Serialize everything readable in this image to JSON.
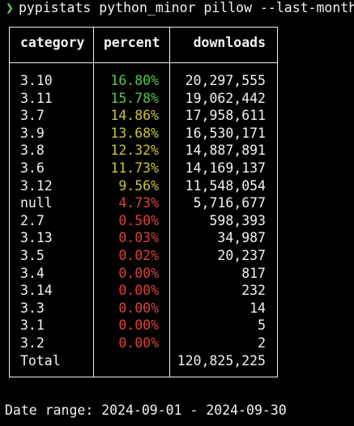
{
  "terminal": {
    "prompt_symbol": "❯",
    "command": "pypistats python_minor pillow --last-month"
  },
  "table": {
    "headers": {
      "category": "category",
      "percent": "percent",
      "downloads": "downloads"
    },
    "rows": [
      {
        "category": "3.10",
        "percent": "16.80%",
        "downloads": "20,297,555",
        "color": "#53c64b"
      },
      {
        "category": "3.11",
        "percent": "15.78%",
        "downloads": "19,062,442",
        "color": "#53c64b"
      },
      {
        "category": "3.7",
        "percent": "14.86%",
        "downloads": "17,958,611",
        "color": "#c8c23a"
      },
      {
        "category": "3.9",
        "percent": "13.68%",
        "downloads": "16,530,171",
        "color": "#c8c23a"
      },
      {
        "category": "3.8",
        "percent": "12.32%",
        "downloads": "14,887,891",
        "color": "#c8c23a"
      },
      {
        "category": "3.6",
        "percent": "11.73%",
        "downloads": "14,169,137",
        "color": "#c8c23a"
      },
      {
        "category": "3.12",
        "percent": "9.56%",
        "downloads": "11,548,054",
        "color": "#c8c23a"
      },
      {
        "category": "null",
        "percent": "4.73%",
        "downloads": "5,716,677",
        "color": "#d6443c"
      },
      {
        "category": "2.7",
        "percent": "0.50%",
        "downloads": "598,393",
        "color": "#d6443c"
      },
      {
        "category": "3.13",
        "percent": "0.03%",
        "downloads": "34,987",
        "color": "#d6443c"
      },
      {
        "category": "3.5",
        "percent": "0.02%",
        "downloads": "20,237",
        "color": "#d6443c"
      },
      {
        "category": "3.4",
        "percent": "0.00%",
        "downloads": "817",
        "color": "#d6443c"
      },
      {
        "category": "3.14",
        "percent": "0.00%",
        "downloads": "232",
        "color": "#d6443c"
      },
      {
        "category": "3.3",
        "percent": "0.00%",
        "downloads": "14",
        "color": "#d6443c"
      },
      {
        "category": "3.1",
        "percent": "0.00%",
        "downloads": "5",
        "color": "#d6443c"
      },
      {
        "category": "3.2",
        "percent": "0.00%",
        "downloads": "2",
        "color": "#d6443c"
      }
    ],
    "total": {
      "label": "Total",
      "downloads": "120,825,225"
    }
  },
  "footer": {
    "date_range": "Date range: 2024-09-01 - 2024-09-30"
  },
  "colors": {
    "background": "#000000",
    "text": "#f2f2f2",
    "prompt": "#5fd75f",
    "high": "#53c64b",
    "mid": "#c8c23a",
    "low": "#d6443c"
  }
}
